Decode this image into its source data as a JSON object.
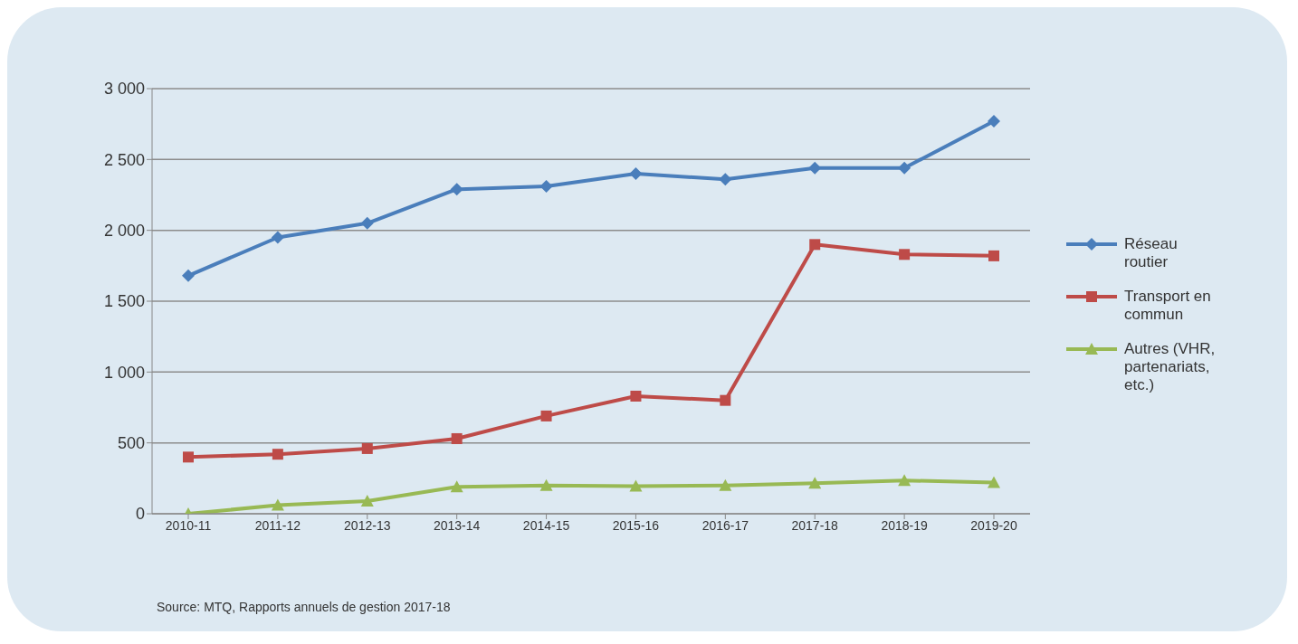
{
  "chart_data": {
    "type": "line",
    "categories": [
      "2010-11",
      "2011-12",
      "2012-13",
      "2013-14",
      "2014-15",
      "2015-16",
      "2016-17",
      "2017-18",
      "2018-19",
      "2019-20"
    ],
    "series": [
      {
        "name": "Réseau routier",
        "color": "#4a7ebb",
        "marker": "diamond",
        "values": [
          1680,
          1950,
          2050,
          2290,
          2310,
          2400,
          2360,
          2440,
          2440,
          2770
        ]
      },
      {
        "name": "Transport en commun",
        "color": "#be4b48",
        "marker": "square",
        "values": [
          400,
          420,
          460,
          530,
          690,
          830,
          800,
          1900,
          1830,
          1820
        ]
      },
      {
        "name": "Autres (VHR, partenariats, etc.)",
        "color": "#98b954",
        "marker": "triangle",
        "values": [
          0,
          60,
          90,
          190,
          200,
          195,
          200,
          215,
          235,
          220
        ]
      }
    ],
    "ylim": [
      0,
      3000
    ],
    "yticks": [
      0,
      500,
      {
        "value": 1000,
        "label": "1 000"
      },
      {
        "value": 1500,
        "label": "1 500"
      },
      {
        "value": 2000,
        "label": "2 000"
      },
      {
        "value": 2500,
        "label": "2 500"
      },
      {
        "value": 3000,
        "label": "3 000"
      }
    ],
    "grid": "y",
    "legend": "right",
    "line_style": "solid",
    "annotations": [
      "Source: MTQ, Rapports annuels de gestion 2017-18"
    ]
  }
}
